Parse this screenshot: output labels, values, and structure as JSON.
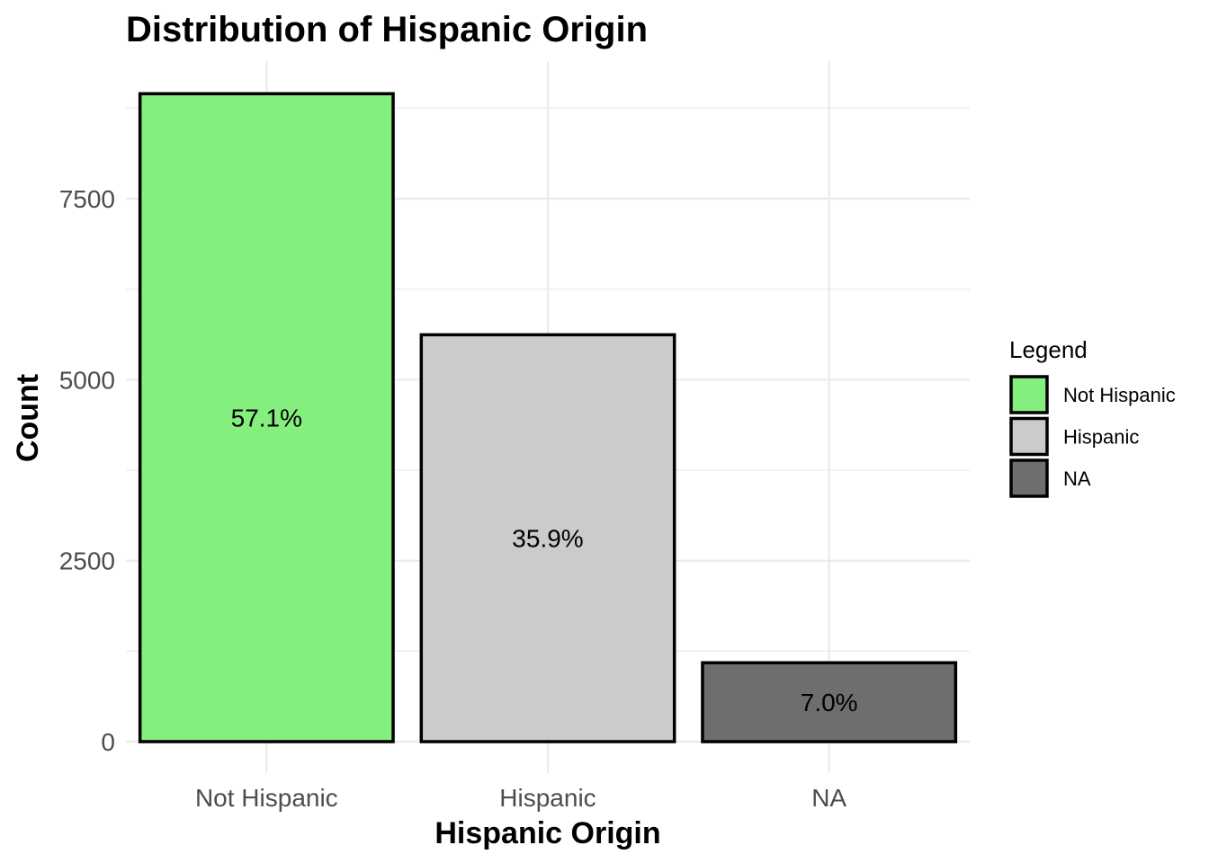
{
  "chart_data": {
    "type": "bar",
    "title": "Distribution of Hispanic Origin",
    "xlabel": "Hispanic Origin",
    "ylabel": "Count",
    "categories": [
      "Not Hispanic",
      "Hispanic",
      "NA"
    ],
    "values": [
      8950,
      5620,
      1090
    ],
    "data_labels": [
      "57.1%",
      "35.9%",
      "7.0%"
    ],
    "colors": [
      "#84ee7e",
      "#cbcbcb",
      "#6e6e6e"
    ],
    "bar_border_color": "#000000",
    "ylim": [
      0,
      9400
    ],
    "yticks": [
      0,
      2500,
      5000,
      7500
    ],
    "ytick_labels": [
      "0",
      "2500",
      "5000",
      "7500"
    ],
    "grid": true,
    "legend": {
      "title": "Legend",
      "placement": "right",
      "entries": [
        "Not Hispanic",
        "Hispanic",
        "NA"
      ]
    }
  }
}
